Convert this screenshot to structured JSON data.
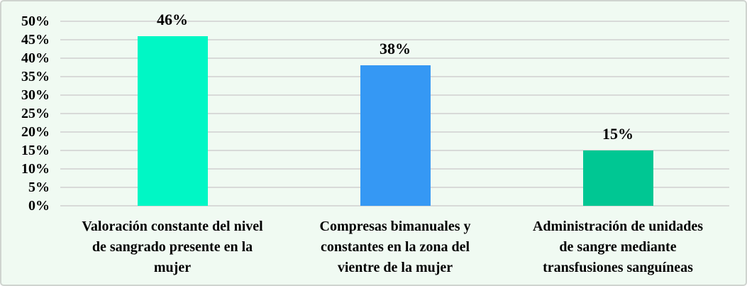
{
  "chart_data": {
    "type": "bar",
    "title": "",
    "xlabel": "",
    "ylabel": "",
    "categories": [
      "Valoración constante del nivel de sangrado presente en la mujer",
      "Compresas bimanuales y constantes en la zona del vientre de la mujer",
      "Administración de unidades de sangre mediante transfusiones sanguíneas"
    ],
    "category_lines": [
      [
        "Valoración constante del nivel",
        "de sangrado presente en la",
        "mujer"
      ],
      [
        "Compresas bimanuales y",
        "constantes en la zona del",
        "vientre de la mujer"
      ],
      [
        "Administración de unidades",
        "de sangre mediante",
        "transfusiones sanguíneas"
      ]
    ],
    "values": [
      46,
      38,
      15
    ],
    "value_labels": [
      "46%",
      "38%",
      "15%"
    ],
    "bar_colors": [
      "#00f7c5",
      "#3598f4",
      "#00c793"
    ],
    "y_ticks": [
      "50%",
      "45%",
      "40%",
      "35%",
      "30%",
      "25%",
      "20%",
      "15%",
      "10%",
      "5%",
      "0%"
    ],
    "y_tick_values": [
      50,
      45,
      40,
      35,
      30,
      25,
      20,
      15,
      10,
      5,
      0
    ],
    "ylim": [
      0,
      50
    ],
    "grid": true,
    "legend": "none",
    "colors": {
      "background": "#f0faf2",
      "border": "#cfd4cf",
      "gridline": "#d8dad8",
      "text": "#000000"
    }
  }
}
